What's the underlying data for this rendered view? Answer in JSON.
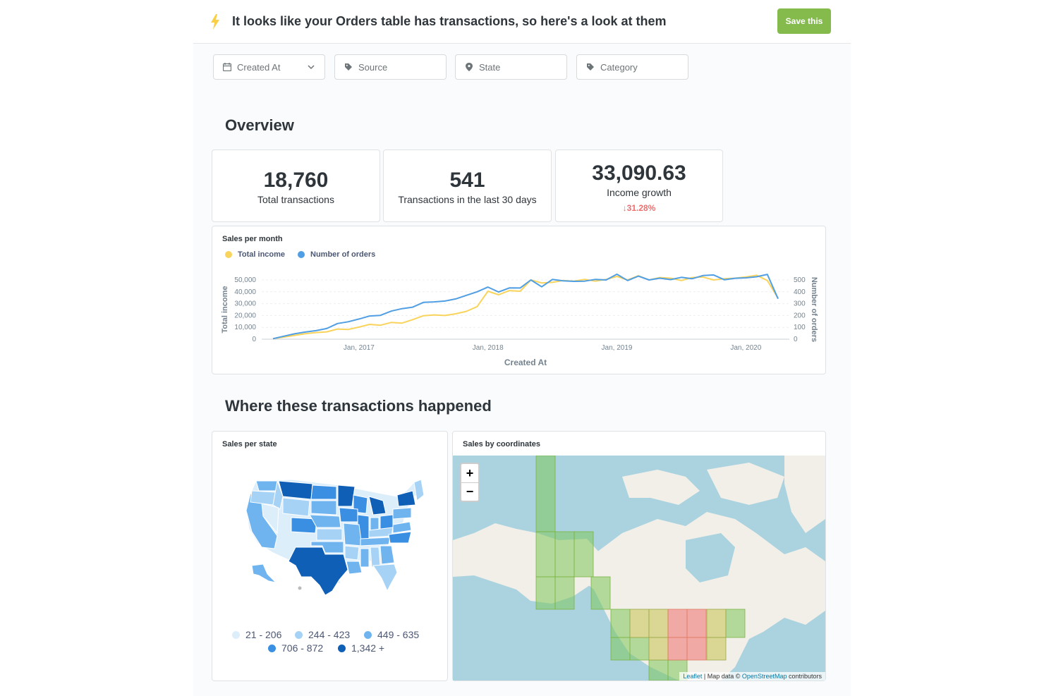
{
  "header": {
    "title": "It looks like your Orders table has transactions, so here's a look at them",
    "save_label": "Save this",
    "accent_color": "#84bb4c",
    "icon": "lightning-bolt-icon"
  },
  "filters": [
    {
      "label": "Created At",
      "icon": "calendar-icon",
      "has_dropdown": true
    },
    {
      "label": "Source",
      "icon": "tag-icon"
    },
    {
      "label": "State",
      "icon": "location-pin-icon"
    },
    {
      "label": "Category",
      "icon": "tag-icon"
    }
  ],
  "overview": {
    "title": "Overview",
    "kpis": [
      {
        "value": "18,760",
        "label": "Total transactions"
      },
      {
        "value": "541",
        "label": "Transactions in the last 30 days"
      },
      {
        "value": "33,090.63",
        "label": "Income growth",
        "delta": "31.28%",
        "delta_direction": "down",
        "delta_color": "#ed6e6e"
      }
    ]
  },
  "sales_chart": {
    "card_title": "Sales per month",
    "x_label": "Created At",
    "y_left_label": "Total income",
    "y_right_label": "Number of orders"
  },
  "chart_data": {
    "type": "line",
    "title": "Sales per month",
    "xlabel": "Created At",
    "ylabel": "Total income",
    "y2label": "Number of orders",
    "x_ticks": [
      "Jan, 2017",
      "Jan, 2018",
      "Jan, 2019",
      "Jan, 2020"
    ],
    "y_ticks": [
      "50,000",
      "40,000",
      "30,000",
      "20,000",
      "10,000",
      "0"
    ],
    "y2_ticks": [
      "500",
      "400",
      "300",
      "200",
      "100",
      "0"
    ],
    "ylim": [
      0,
      50000
    ],
    "y2lim": [
      0,
      500
    ],
    "x": [
      "2016-05",
      "2016-06",
      "2016-07",
      "2016-08",
      "2016-09",
      "2016-10",
      "2016-11",
      "2016-12",
      "2017-01",
      "2017-02",
      "2017-03",
      "2017-04",
      "2017-05",
      "2017-06",
      "2017-07",
      "2017-08",
      "2017-09",
      "2017-10",
      "2017-11",
      "2017-12",
      "2018-01",
      "2018-02",
      "2018-03",
      "2018-04",
      "2018-05",
      "2018-06",
      "2018-07",
      "2018-08",
      "2018-09",
      "2018-10",
      "2018-11",
      "2018-12",
      "2019-01",
      "2019-02",
      "2019-03",
      "2019-04",
      "2019-05",
      "2019-06",
      "2019-07",
      "2019-08",
      "2019-09",
      "2019-10",
      "2019-11",
      "2019-12",
      "2020-01",
      "2020-02",
      "2020-03",
      "2020-04"
    ],
    "series": [
      {
        "name": "Total income",
        "axis": "left",
        "color": "#f9d45c",
        "values": [
          400,
          1800,
          3200,
          4600,
          5600,
          6200,
          8600,
          8200,
          10200,
          12500,
          11800,
          14100,
          13600,
          16500,
          19800,
          20500,
          20000,
          21400,
          23500,
          27500,
          40500,
          37500,
          41000,
          40500,
          50000,
          47500,
          48000,
          49500,
          49000,
          50500,
          49000,
          50500,
          53000,
          50000,
          53500,
          50000,
          52000,
          51500,
          49500,
          52000,
          52500,
          50000,
          51000,
          51500,
          52500,
          54000,
          49500,
          34500
        ]
      },
      {
        "name": "Number of orders",
        "axis": "right",
        "color": "#509ee3",
        "values": [
          4,
          25,
          45,
          60,
          72,
          90,
          132,
          147,
          170,
          196,
          201,
          237,
          258,
          270,
          311,
          315,
          322,
          340,
          370,
          400,
          440,
          398,
          433,
          432,
          500,
          442,
          504,
          492,
          488,
          490,
          505,
          500,
          548,
          495,
          532,
          500,
          515,
          503,
          522,
          510,
          537,
          542,
          502,
          514,
          518,
          527,
          547,
          341
        ]
      }
    ]
  },
  "geo": {
    "title": "Where these transactions happened",
    "state_card_title": "Sales per state",
    "coord_card_title": "Sales by coordinates",
    "legend": [
      {
        "label": "21 - 206",
        "color": "#ddeefb"
      },
      {
        "label": "244 - 423",
        "color": "#a6d2f5"
      },
      {
        "label": "449 - 635",
        "color": "#6fb4ef"
      },
      {
        "label": "706 - 872",
        "color": "#3a8fe3"
      },
      {
        "label": "1,342 +",
        "color": "#0f5fb7"
      }
    ],
    "zoom_in": "+",
    "zoom_out": "−",
    "attribution": {
      "leaflet": "Leaflet",
      "middle": " | Map data © ",
      "osm": "OpenStreetMap",
      "tail": " contributors"
    }
  }
}
